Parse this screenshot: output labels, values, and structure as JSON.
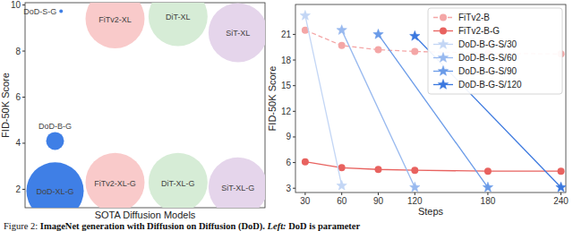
{
  "chart_data": [
    {
      "type": "scatter",
      "xlabel": "SOTA Diffusion Models",
      "ylabel": "FID-50K Score",
      "labels": [
        "DoD-S-G",
        "FiTv2-XL",
        "DiT-XL",
        "SiT-XL",
        "DoD-B-G",
        "DoD-XL-G",
        "FiTv2-XL-G",
        "DiT-XL-G",
        "SiT-XL-G"
      ],
      "x": [
        0.6,
        1.5,
        2.55,
        3.55,
        0.5,
        0.5,
        1.5,
        2.55,
        3.55
      ],
      "values": [
        9.73,
        9.4,
        9.5,
        8.8,
        4.1,
        1.93,
        2.3,
        2.3,
        2.1
      ],
      "sizes": [
        4,
        1089,
        1089,
        1089,
        100,
        1024,
        1089,
        1089,
        1089
      ],
      "colors": [
        "#3f7fe6",
        "#f9caca",
        "#d6ecd6",
        "#e5d5eb",
        "#3f7fe6",
        "#3f7fe6",
        "#f9caca",
        "#d6ecd6",
        "#e5d5eb"
      ],
      "xlim": [
        0,
        4
      ],
      "ylim": [
        1.2,
        10.1
      ],
      "yticks": [
        2,
        4,
        6,
        8,
        10
      ],
      "tick_labels": "y",
      "grid": false
    },
    {
      "type": "line",
      "xlabel": "Steps",
      "ylabel": "FID-50K Score",
      "xlim": [
        22,
        244
      ],
      "xticks": [
        30,
        60,
        90,
        120,
        180,
        240
      ],
      "ylim": [
        2.5,
        24.5
      ],
      "yticks": [
        3,
        6,
        9,
        12,
        15,
        18,
        21
      ],
      "grid": false,
      "legend": "upper right",
      "series": [
        {
          "name": "FiTv2-B",
          "color": "#f4a6a6",
          "marker": "o",
          "line_style": "dashed",
          "x": [
            30,
            60,
            90,
            120,
            180,
            240
          ],
          "values": [
            21.5,
            19.7,
            19.2,
            19.0,
            18.8,
            18.7
          ]
        },
        {
          "name": "FiTv2-B-G",
          "color": "#e8625f",
          "marker": "o",
          "line_style": "solid",
          "x": [
            30,
            60,
            90,
            120,
            180,
            240
          ],
          "values": [
            6.1,
            5.4,
            5.2,
            5.1,
            5.0,
            5.0
          ]
        },
        {
          "name": "DoD-B-G-S/30",
          "color": "#c3d6f5",
          "marker": "*",
          "line_style": "solid",
          "x": [
            30,
            60
          ],
          "values": [
            23.2,
            3.3
          ]
        },
        {
          "name": "DoD-B-G-S/60",
          "color": "#98b9ef",
          "marker": "*",
          "line_style": "solid",
          "x": [
            60,
            120
          ],
          "values": [
            21.5,
            3.1
          ]
        },
        {
          "name": "DoD-B-G-S/90",
          "color": "#6a9be8",
          "marker": "*",
          "line_style": "solid",
          "x": [
            90,
            180
          ],
          "values": [
            21.0,
            3.1
          ]
        },
        {
          "name": "DoD-B-G-S/120",
          "color": "#3b78df",
          "marker": "*",
          "line_style": "solid",
          "x": [
            120,
            240
          ],
          "values": [
            20.8,
            3.1
          ]
        }
      ]
    }
  ],
  "caption": [
    "Figure 2:",
    "ImageNet generation with Diffusion on Diffusion (DoD).",
    "Left:",
    "DoD is parameter"
  ]
}
